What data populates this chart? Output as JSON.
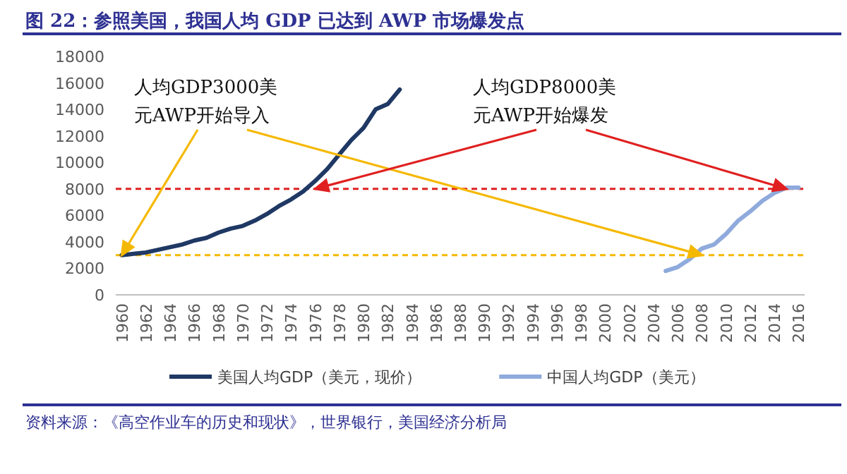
{
  "chart_data": {
    "type": "line",
    "title": "图 22：参照美国，我国人均 GDP 已达到 AWP 市场爆发点",
    "series": [
      {
        "name": "美国人均GDP（美元，现价）",
        "color": "#1f3864",
        "x": [
          1960,
          1961,
          1962,
          1963,
          1964,
          1965,
          1966,
          1967,
          1968,
          1969,
          1970,
          1971,
          1972,
          1973,
          1974,
          1975,
          1976,
          1977,
          1978,
          1979,
          1980,
          1981,
          1982,
          1983
        ],
        "values": [
          3000,
          3100,
          3200,
          3400,
          3600,
          3800,
          4100,
          4300,
          4700,
          5000,
          5200,
          5600,
          6100,
          6700,
          7200,
          7800,
          8600,
          9500,
          10600,
          11700,
          12600,
          14000,
          14400,
          15500
        ]
      },
      {
        "name": "中国人均GDP（美元）",
        "color": "#8faadc",
        "x": [
          2005,
          2006,
          2007,
          2008,
          2009,
          2010,
          2011,
          2012,
          2013,
          2014,
          2015,
          2016
        ],
        "values": [
          1800,
          2100,
          2700,
          3500,
          3800,
          4600,
          5600,
          6300,
          7100,
          7700,
          8100,
          8100
        ]
      }
    ],
    "xlim": [
      1959.5,
      2016.5
    ],
    "xticks": [
      1960,
      1962,
      1964,
      1966,
      1968,
      1970,
      1972,
      1974,
      1976,
      1978,
      1980,
      1982,
      1984,
      1986,
      1988,
      1990,
      1992,
      1994,
      1996,
      1998,
      2000,
      2002,
      2004,
      2006,
      2008,
      2010,
      2012,
      2014,
      2016
    ],
    "ylim": [
      0,
      18000
    ],
    "yticks": [
      0,
      2000,
      4000,
      6000,
      8000,
      10000,
      12000,
      14000,
      16000,
      18000
    ],
    "ref_lines": [
      {
        "axis": "y",
        "value": 3000,
        "color": "#f5b800",
        "line_style": "dashed"
      },
      {
        "axis": "y",
        "value": 8000,
        "color": "#e02020",
        "line_style": "dashed"
      }
    ],
    "annotations": [
      "人均GDP3000美元AWP开始导入",
      "人均GDP8000美元AWP开始爆发",
      "资料来源：《高空作业车的历史和现状》，世界银行，美国经济分析局"
    ],
    "legend": "bottom",
    "grid": false,
    "marker": "none",
    "line_style": "solid"
  }
}
